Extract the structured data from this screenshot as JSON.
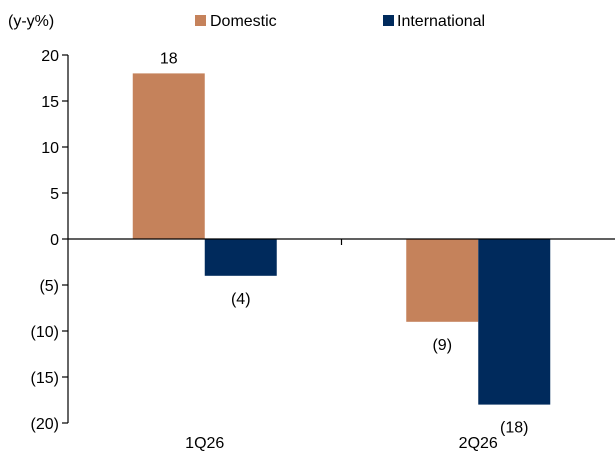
{
  "chart_data": {
    "type": "bar",
    "unit_label": "(y-y%)",
    "categories": [
      "1Q26",
      "2Q26"
    ],
    "series": [
      {
        "name": "Domestic",
        "color": "#C5825B",
        "values": [
          18,
          -9
        ],
        "data_labels": [
          "18",
          "(9)"
        ]
      },
      {
        "name": "International",
        "color": "#002A5C",
        "values": [
          -4,
          -18
        ],
        "data_labels": [
          "(4)",
          "(18)"
        ]
      }
    ],
    "ylim": [
      -20,
      20
    ],
    "yticks": [
      20,
      15,
      10,
      5,
      0,
      -5,
      -10,
      -15,
      -20
    ],
    "ytick_labels": [
      "20",
      "15",
      "10",
      "5",
      "0",
      "(5)",
      "(10)",
      "(15)",
      "(20)"
    ],
    "grid": false,
    "legend_position": "top"
  }
}
